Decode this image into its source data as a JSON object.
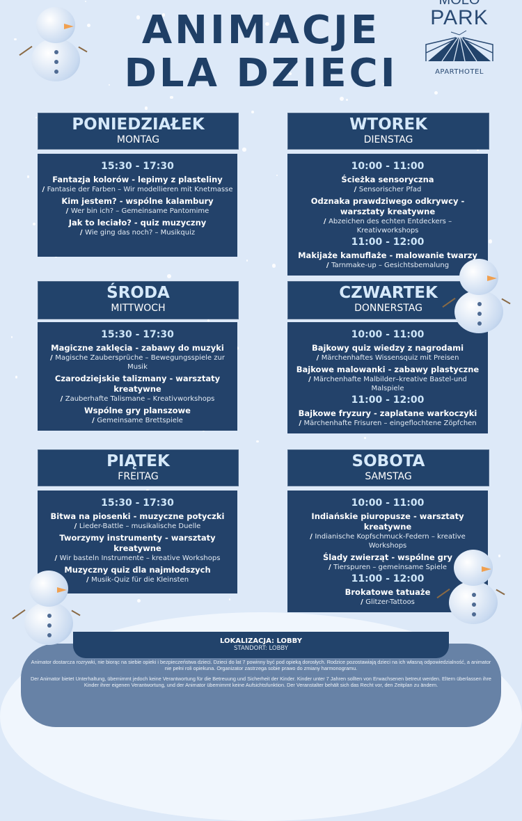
{
  "title": {
    "line1": "ANIMACJE",
    "line2": "DLA DZIECI"
  },
  "logo": {
    "top": "MOLO",
    "name": "PARK",
    "subtitle": "APARTHOTEL"
  },
  "colors": {
    "navy": "#22436b",
    "background": "#dde9f8",
    "time": "#cde5f8",
    "title": "#1f3f66"
  },
  "days": [
    {
      "pl": "PONIEDZIAŁEK",
      "de": "MONTAG",
      "blocks": [
        {
          "time": "15:30 - 17:30",
          "activities": [
            {
              "pl": "Fantazja kolorów - lepimy z plasteliny",
              "de": "Fantasie der Farben – Wir modellieren mit Knetmasse"
            },
            {
              "pl": "Kim jestem? - wspólne kalambury",
              "de": "Wer bin ich? – Gemeinsame Pantomime"
            },
            {
              "pl": "Jak to leciało? - quiz muzyczny",
              "de": "Wie ging das noch? – Musikquiz"
            }
          ]
        }
      ]
    },
    {
      "pl": "WTOREK",
      "de": "DIENSTAG",
      "blocks": [
        {
          "time": "10:00 - 11:00",
          "activities": [
            {
              "pl": "Ścieżka sensoryczna",
              "de": "Sensorischer Pfad"
            },
            {
              "pl": "Odznaka prawdziwego odkrywcy - warsztaty kreatywne",
              "de": "Abzeichen des echten Entdeckers – Kreativworkshops"
            }
          ]
        },
        {
          "time": "11:00 - 12:00",
          "activities": [
            {
              "pl": "Makijaże kamuflaże - malowanie twarzy",
              "de": "Tarnmake-up – Gesichtsbemalung"
            }
          ]
        }
      ]
    },
    {
      "pl": "ŚRODA",
      "de": "MITTWOCH",
      "blocks": [
        {
          "time": "15:30 - 17:30",
          "activities": [
            {
              "pl": "Magiczne zaklęcia - zabawy do muzyki",
              "de": "Magische Zaubersprüche – Bewegungsspiele zur Musik"
            },
            {
              "pl": "Czarodziejskie talizmany - warsztaty kreatywne",
              "de": "Zauberhafte Talismane – Kreativworkshops"
            },
            {
              "pl": "Wspólne gry planszowe",
              "de": "Gemeinsame Brettspiele"
            }
          ]
        }
      ]
    },
    {
      "pl": "CZWARTEK",
      "de": "DONNERSTAG",
      "blocks": [
        {
          "time": "10:00 - 11:00",
          "activities": [
            {
              "pl": "Bajkowy quiz wiedzy z nagrodami",
              "de": "Märchenhaftes Wissensquiz mit Preisen"
            },
            {
              "pl": "Bajkowe malowanki - zabawy plastyczne",
              "de": "Märchenhafte Malbilder–kreative Bastel-und Malspiele"
            }
          ]
        },
        {
          "time": "11:00 - 12:00",
          "activities": [
            {
              "pl": "Bajkowe fryzury - zaplatane warkoczyki",
              "de": "Märchenhafte Frisuren – eingeflochtene Zöpfchen"
            }
          ]
        }
      ]
    },
    {
      "pl": "PIĄTEK",
      "de": "FREITAG",
      "blocks": [
        {
          "time": "15:30 - 17:30",
          "activities": [
            {
              "pl": "Bitwa na piosenki - muzyczne potyczki",
              "de": "Lieder-Battle – musikalische Duelle"
            },
            {
              "pl": "Tworzymy instrumenty - warsztaty kreatywne",
              "de": "Wir basteln Instrumente – kreative Workshops"
            },
            {
              "pl": "Muzyczny quiz dla najmłodszych",
              "de": "Musik-Quiz für die Kleinsten"
            }
          ]
        }
      ]
    },
    {
      "pl": "SOBOTA",
      "de": "SAMSTAG",
      "blocks": [
        {
          "time": "10:00 - 11:00",
          "activities": [
            {
              "pl": "Indiańskie piuropusze - warsztaty kreatywne",
              "de": "Indianische Kopfschmuck-Federn – kreative Workshops"
            },
            {
              "pl": "Ślady zwierząt - wspólne gry",
              "de": "Tierspuren – gemeinsame Spiele"
            }
          ]
        },
        {
          "time": "11:00 - 12:00",
          "activities": [
            {
              "pl": "Brokatowe tatuaże",
              "de": "Glitzer-Tattoos"
            }
          ]
        }
      ]
    }
  ],
  "footer": {
    "location_pl": "LOKALIZACJA: LOBBY",
    "location_de": "STANDORT: LOBBY",
    "disclaimer_pl": "Animator dostarcza rozrywki, nie biorąc na siebie opieki i bezpieczeństwa dzieci. Dzieci do lat 7 powinny być pod opieką dorosłych. Rodzice pozostawiają dzieci na ich własną odpowiedzialność, a animator nie pełni roli opiekuna. Organizator zastrzega sobie prawo do zmiany harmonogramu.",
    "disclaimer_de": "Der Animator bietet Unterhaltung, übernimmt jedoch keine Verantwortung für die Betreuung und Sicherheit der Kinder. Kinder unter 7 Jahren sollten von Erwachsenen betreut werden. Eltern überlassen ihre Kinder ihrer eigenen Verantwortung, und der Animator übernimmt keine Aufsichtsfunktion. Der Veranstalter behält sich das Recht vor, den Zeitplan zu ändern."
  }
}
